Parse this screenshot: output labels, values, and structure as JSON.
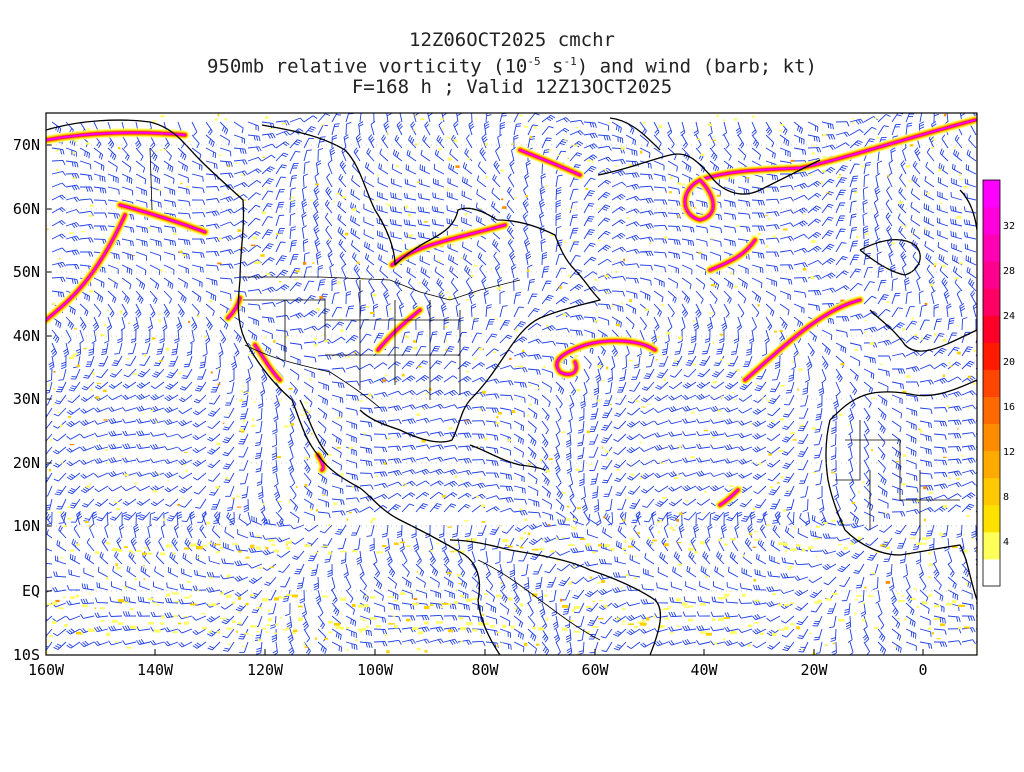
{
  "title": {
    "line1": "12Z06OCT2025 cmchr",
    "line2_prefix": "950mb relative vorticity (10",
    "line2_sup1": "-5",
    "line2_mid": " s",
    "line2_sup2": "-1",
    "line2_suffix": ") and wind (barb; kt)",
    "line3": "F=168 h ; Valid 12Z13OCT2025"
  },
  "lat_labels": [
    "70N",
    "60N",
    "50N",
    "40N",
    "30N",
    "20N",
    "10N",
    "EQ",
    "10S"
  ],
  "lon_labels": [
    "160W",
    "140W",
    "120W",
    "100W",
    "80W",
    "60W",
    "40W",
    "20W",
    "0"
  ],
  "colorbar": {
    "labels": [
      "4",
      "8",
      "12",
      "16",
      "20",
      "24",
      "28",
      "32"
    ],
    "colors": [
      "#ffffff",
      "#ffff5a",
      "#ffe100",
      "#ffc800",
      "#ffaa00",
      "#ff8c00",
      "#ff6a00",
      "#ff4500",
      "#ff1a00",
      "#ff0028",
      "#ff0064",
      "#ff008c",
      "#ff00b4",
      "#ff00dc",
      "#ff00ff"
    ]
  },
  "map": {
    "barb_color": "#1f3fe6",
    "coast_color": "#000000",
    "vort_bands": [
      "#ffff66",
      "#ffd000",
      "#ff8c00",
      "#ff2a2a",
      "#ff0090",
      "#ff00ff"
    ]
  }
}
